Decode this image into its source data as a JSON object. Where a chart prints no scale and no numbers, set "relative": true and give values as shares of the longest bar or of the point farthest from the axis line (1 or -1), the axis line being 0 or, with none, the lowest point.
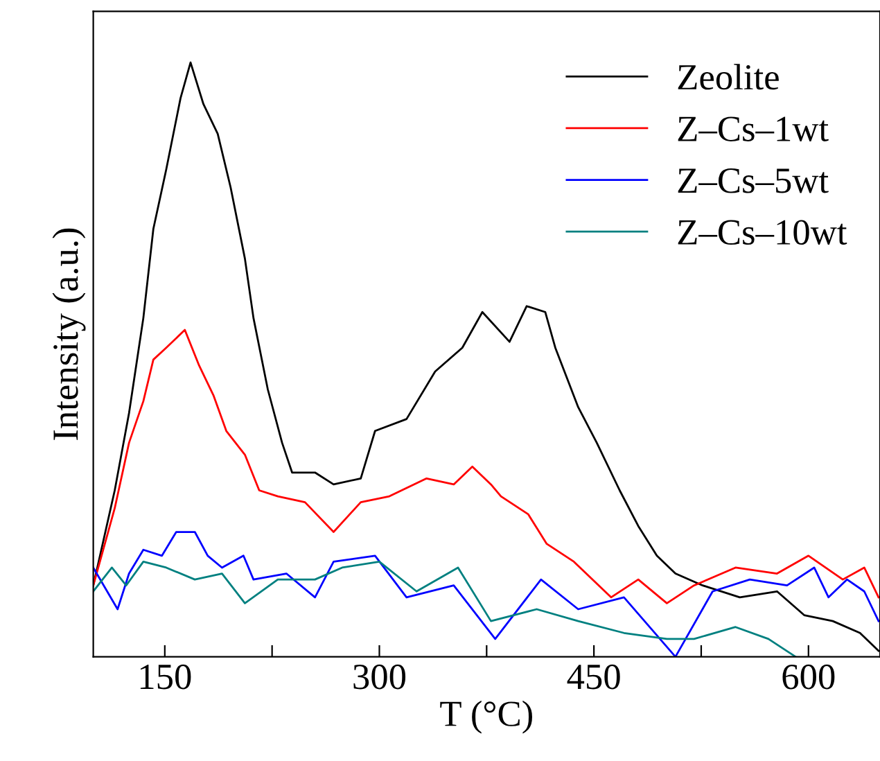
{
  "chart_data": {
    "type": "line",
    "relative": true,
    "xlabel": "T (°C)",
    "ylabel": "Intensity (a.u.)",
    "xlim": [
      100,
      650
    ],
    "xticks": [
      150,
      {
        "value": 225,
        "label": null
      },
      300,
      {
        "value": 375,
        "label": null
      },
      450,
      {
        "value": 525,
        "label": null
      },
      600
    ],
    "legend": "top right",
    "grid": false,
    "marker": "none",
    "line_style": "solid",
    "series": [
      {
        "name": "Zeolite",
        "color": "#000000",
        "x": [
          100,
          115,
          125,
          135,
          142,
          151,
          161,
          168,
          177,
          187,
          196,
          206,
          212,
          222,
          232,
          239,
          255,
          268,
          287,
          297,
          319,
          339,
          358,
          372,
          391,
          403,
          416,
          423,
          439,
          452,
          468,
          481,
          494,
          507,
          526,
          552,
          578,
          597,
          617,
          636,
          649
        ],
        "values": [
          0.12,
          0.28,
          0.41,
          0.57,
          0.72,
          0.82,
          0.94,
          1.0,
          0.93,
          0.88,
          0.79,
          0.67,
          0.57,
          0.45,
          0.36,
          0.31,
          0.31,
          0.29,
          0.3,
          0.38,
          0.4,
          0.48,
          0.52,
          0.58,
          0.53,
          0.59,
          0.58,
          0.52,
          0.42,
          0.36,
          0.28,
          0.22,
          0.17,
          0.14,
          0.12,
          0.1,
          0.11,
          0.07,
          0.06,
          0.04,
          0.01
        ]
      },
      {
        "name": "Z–Cs–1wt",
        "color": "#ff0000",
        "x": [
          100,
          115,
          125,
          135,
          142,
          151,
          164,
          174,
          184,
          193,
          206,
          216,
          229,
          248,
          268,
          287,
          307,
          333,
          352,
          365,
          378,
          385,
          404,
          417,
          436,
          462,
          481,
          501,
          520,
          549,
          578,
          600,
          624,
          639,
          649
        ],
        "values": [
          0.12,
          0.25,
          0.36,
          0.43,
          0.5,
          0.52,
          0.55,
          0.49,
          0.44,
          0.38,
          0.34,
          0.28,
          0.27,
          0.26,
          0.21,
          0.26,
          0.27,
          0.3,
          0.29,
          0.32,
          0.29,
          0.27,
          0.24,
          0.19,
          0.16,
          0.1,
          0.13,
          0.09,
          0.12,
          0.15,
          0.14,
          0.17,
          0.13,
          0.15,
          0.1
        ]
      },
      {
        "name": "Z–Cs–5wt",
        "color": "#0000ff",
        "x": [
          100,
          117,
          125,
          135,
          148,
          158,
          171,
          180,
          190,
          205,
          212,
          235,
          255,
          268,
          297,
          319,
          352,
          381,
          413,
          439,
          471,
          507,
          533,
          559,
          585,
          604,
          614,
          627,
          639,
          649
        ],
        "values": [
          0.15,
          0.08,
          0.14,
          0.18,
          0.17,
          0.21,
          0.21,
          0.17,
          0.15,
          0.17,
          0.13,
          0.14,
          0.1,
          0.16,
          0.17,
          0.1,
          0.12,
          0.03,
          0.13,
          0.08,
          0.1,
          0.0,
          0.11,
          0.13,
          0.12,
          0.15,
          0.1,
          0.13,
          0.11,
          0.06
        ]
      },
      {
        "name": "Z–Cs–10wt",
        "color": "#008080",
        "x": [
          100,
          113,
          123,
          135,
          151,
          171,
          190,
          206,
          229,
          255,
          274,
          300,
          326,
          355,
          378,
          410,
          439,
          471,
          501,
          520,
          549,
          572,
          591
        ],
        "values": [
          0.11,
          0.15,
          0.12,
          0.16,
          0.15,
          0.13,
          0.14,
          0.09,
          0.13,
          0.13,
          0.15,
          0.16,
          0.11,
          0.15,
          0.06,
          0.08,
          0.06,
          0.04,
          0.03,
          0.03,
          0.05,
          0.03,
          0.0
        ]
      }
    ]
  }
}
